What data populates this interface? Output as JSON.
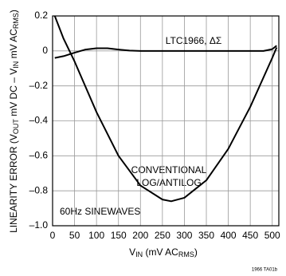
{
  "chart_data": {
    "type": "line",
    "x_label": [
      "V",
      "IN",
      " (mV AC",
      "RMS",
      ")"
    ],
    "y_label": [
      "LINEARITY ERROR (V",
      "OUT",
      " mV DC – V",
      "IN",
      " mV AC",
      "RMS",
      ")"
    ],
    "annotations": [
      "LTC1966, ΔΣ",
      "CONVENTIONAL",
      "LOG/ANTILOG",
      "60Hz SINEWAVES",
      "1966 TA01b"
    ],
    "xlim": [
      0,
      515
    ],
    "xticks": [
      0,
      50,
      100,
      150,
      200,
      250,
      300,
      350,
      400,
      450,
      500
    ],
    "ylim": [
      -1.0,
      0.2
    ],
    "yticks": [
      0.2,
      0,
      {
        "value": -0.2,
        "label": "–0.2"
      },
      {
        "value": -0.4,
        "label": "–0.4"
      },
      {
        "value": -0.6,
        "label": "–0.6"
      },
      {
        "value": -0.8,
        "label": "–0.8"
      },
      {
        "value": -1.0,
        "label": "–1.0"
      }
    ],
    "grid": true,
    "series": [
      {
        "color": "#000000",
        "x": [
          5,
          25,
          50,
          75,
          100,
          125,
          150,
          175,
          200,
          300,
          400,
          480,
          500,
          510
        ],
        "values": [
          -0.04,
          -0.03,
          -0.01,
          0.008,
          0.015,
          0.015,
          0.008,
          0.002,
          0,
          0,
          0,
          0,
          0.01,
          0.03
        ]
      },
      {
        "color": "#000000",
        "x": [
          5,
          25,
          50,
          100,
          150,
          200,
          250,
          270,
          300,
          350,
          400,
          450,
          500,
          510
        ],
        "values": [
          0.2,
          0.07,
          -0.06,
          -0.35,
          -0.6,
          -0.77,
          -0.85,
          -0.86,
          -0.84,
          -0.74,
          -0.56,
          -0.32,
          -0.04,
          0.02
        ]
      }
    ]
  }
}
